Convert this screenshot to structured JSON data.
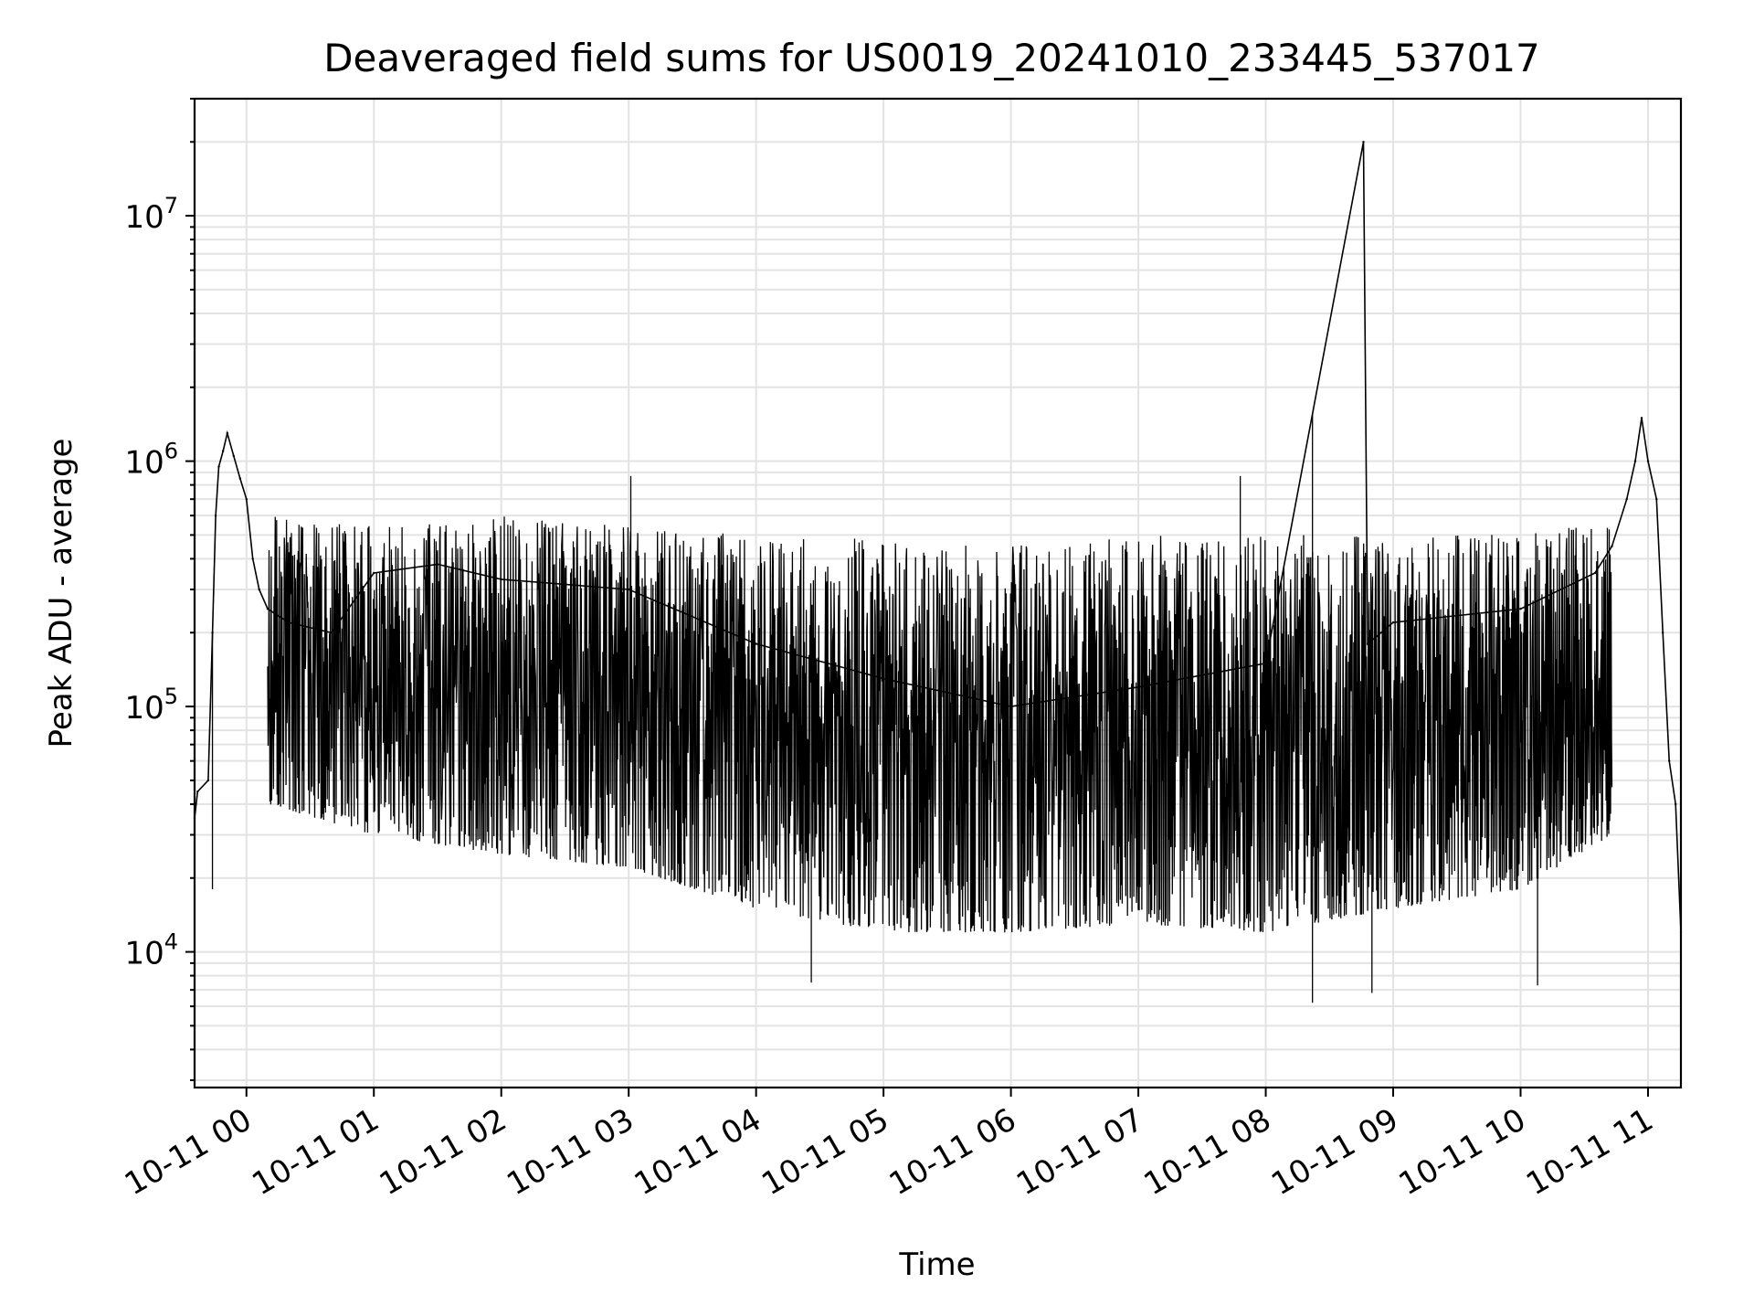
{
  "chart_data": {
    "type": "line",
    "title": "Deaveraged field sums for US0019_20241010_233445_537017",
    "xlabel": "Time",
    "ylabel": "Peak ADU - average",
    "y_scale": "log",
    "grid": true,
    "ylim": [
      2800,
      30000000
    ],
    "xlim": [
      "2024-10-10 23:35:35",
      "2024-10-11 11:15:30"
    ],
    "x_ticks": [
      "10-11 00",
      "10-11 01",
      "10-11 02",
      "10-11 03",
      "10-11 04",
      "10-11 05",
      "10-11 06",
      "10-11 07",
      "10-11 08",
      "10-11 09",
      "10-11 10",
      "10-11 11"
    ],
    "y_ticks": [
      {
        "base": "10",
        "exp": "4",
        "value": 10000
      },
      {
        "base": "10",
        "exp": "5",
        "value": 100000
      },
      {
        "base": "10",
        "exp": "6",
        "value": 1000000
      },
      {
        "base": "10",
        "exp": "7",
        "value": 10000000
      }
    ],
    "line_color": "#000000",
    "series": [
      {
        "x": [
          "2024-10-10 23:35:35",
          "2024-10-10 23:37:00",
          "2024-10-10 23:42:00",
          "2024-10-10 23:44:00",
          "2024-10-10 23:45:30",
          "2024-10-10 23:47:00",
          "2024-10-10 23:49:00",
          "2024-10-10 23:51:00",
          "2024-10-10 23:54:00",
          "2024-10-10 23:57:00",
          "2024-10-11 00:00:00",
          "2024-10-11 00:03:00",
          "2024-10-11 00:06:00",
          "2024-10-11 00:10:00",
          "2024-10-11 00:20:00",
          "2024-10-11 00:40:00",
          "2024-10-11 01:00:00",
          "2024-10-11 01:30:00",
          "2024-10-11 02:00:00",
          "2024-10-11 03:00:00",
          "2024-10-11 04:00:00",
          "2024-10-11 05:00:00",
          "2024-10-11 06:00:00",
          "2024-10-11 07:00:00",
          "2024-10-11 08:00:00",
          "2024-10-11 08:46:00",
          "2024-10-11 08:48:00",
          "2024-10-11 09:00:00",
          "2024-10-11 10:00:00",
          "2024-10-11 10:35:00",
          "2024-10-11 10:43:00",
          "2024-10-11 10:50:00",
          "2024-10-11 10:54:00",
          "2024-10-11 10:57:00",
          "2024-10-11 11:00:00",
          "2024-10-11 11:04:00",
          "2024-10-11 11:07:00",
          "2024-10-11 11:10:00",
          "2024-10-11 11:13:00",
          "2024-10-11 11:15:30"
        ],
        "values": [
          35000,
          45000,
          50000,
          200000,
          600000,
          950000,
          1100000,
          1300000,
          1050000,
          850000,
          700000,
          400000,
          300000,
          250000,
          220000,
          200000,
          350000,
          380000,
          330000,
          300000,
          180000,
          130000,
          100000,
          120000,
          150000,
          20000000,
          180000,
          220000,
          250000,
          350000,
          450000,
          700000,
          1000000,
          1500000,
          1000000,
          700000,
          200000,
          60000,
          40000,
          12000
        ]
      }
    ],
    "envelope": {
      "x": [
        "2024-10-11 00:10:00",
        "2024-10-11 01:00:00",
        "2024-10-11 02:00:00",
        "2024-10-11 03:00:00",
        "2024-10-11 04:00:00",
        "2024-10-11 05:00:00",
        "2024-10-11 06:00:00",
        "2024-10-11 07:00:00",
        "2024-10-11 08:00:00",
        "2024-10-11 09:00:00",
        "2024-10-11 10:00:00",
        "2024-10-11 10:43:00"
      ],
      "high": [
        600000,
        550000,
        600000,
        550000,
        500000,
        480000,
        450000,
        500000,
        500000,
        500000,
        520000,
        550000
      ],
      "low": [
        40000,
        30000,
        25000,
        22000,
        15000,
        12000,
        12000,
        13000,
        12000,
        15000,
        18000,
        30000
      ]
    },
    "extremes": [
      {
        "x": "2024-10-10 23:44:00",
        "value": 18000
      },
      {
        "x": "2024-10-11 03:01:00",
        "value": 870000
      },
      {
        "x": "2024-10-11 04:26:00",
        "value": 7500
      },
      {
        "x": "2024-10-11 07:48:00",
        "value": 870000
      },
      {
        "x": "2024-10-11 08:22:00",
        "value": 6200
      },
      {
        "x": "2024-10-11 08:50:00",
        "value": 6800
      },
      {
        "x": "2024-10-11 10:08:00",
        "value": 7300
      }
    ]
  }
}
